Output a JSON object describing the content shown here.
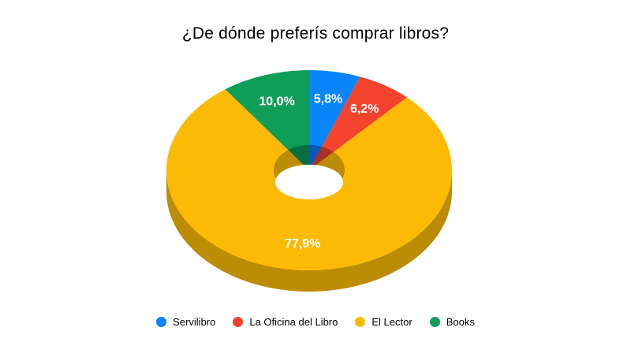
{
  "title": "¿De dónde preferís comprar libros?",
  "chart_data": {
    "type": "pie",
    "subtype": "3d-donut",
    "title": "¿De dónde preferís comprar libros?",
    "categories": [
      "Servilibro",
      "La Oficina del Libro",
      "El Lector",
      "Books"
    ],
    "values": [
      5.8,
      6.2,
      77.9,
      10.0
    ],
    "value_labels": [
      "5,8%",
      "6,2%",
      "77,9%",
      "10,0%"
    ],
    "colors": [
      "#0a85f8",
      "#f4432d",
      "#fcba05",
      "#0f9d58"
    ],
    "side_colors": [
      "#0b58b8",
      "#aa3023",
      "#bd8c05",
      "#0a6e40"
    ],
    "label_color": "#ffffff",
    "background": "#ffffff",
    "legend_position": "bottom",
    "start_angle_deg": 0,
    "direction": "clockwise"
  }
}
